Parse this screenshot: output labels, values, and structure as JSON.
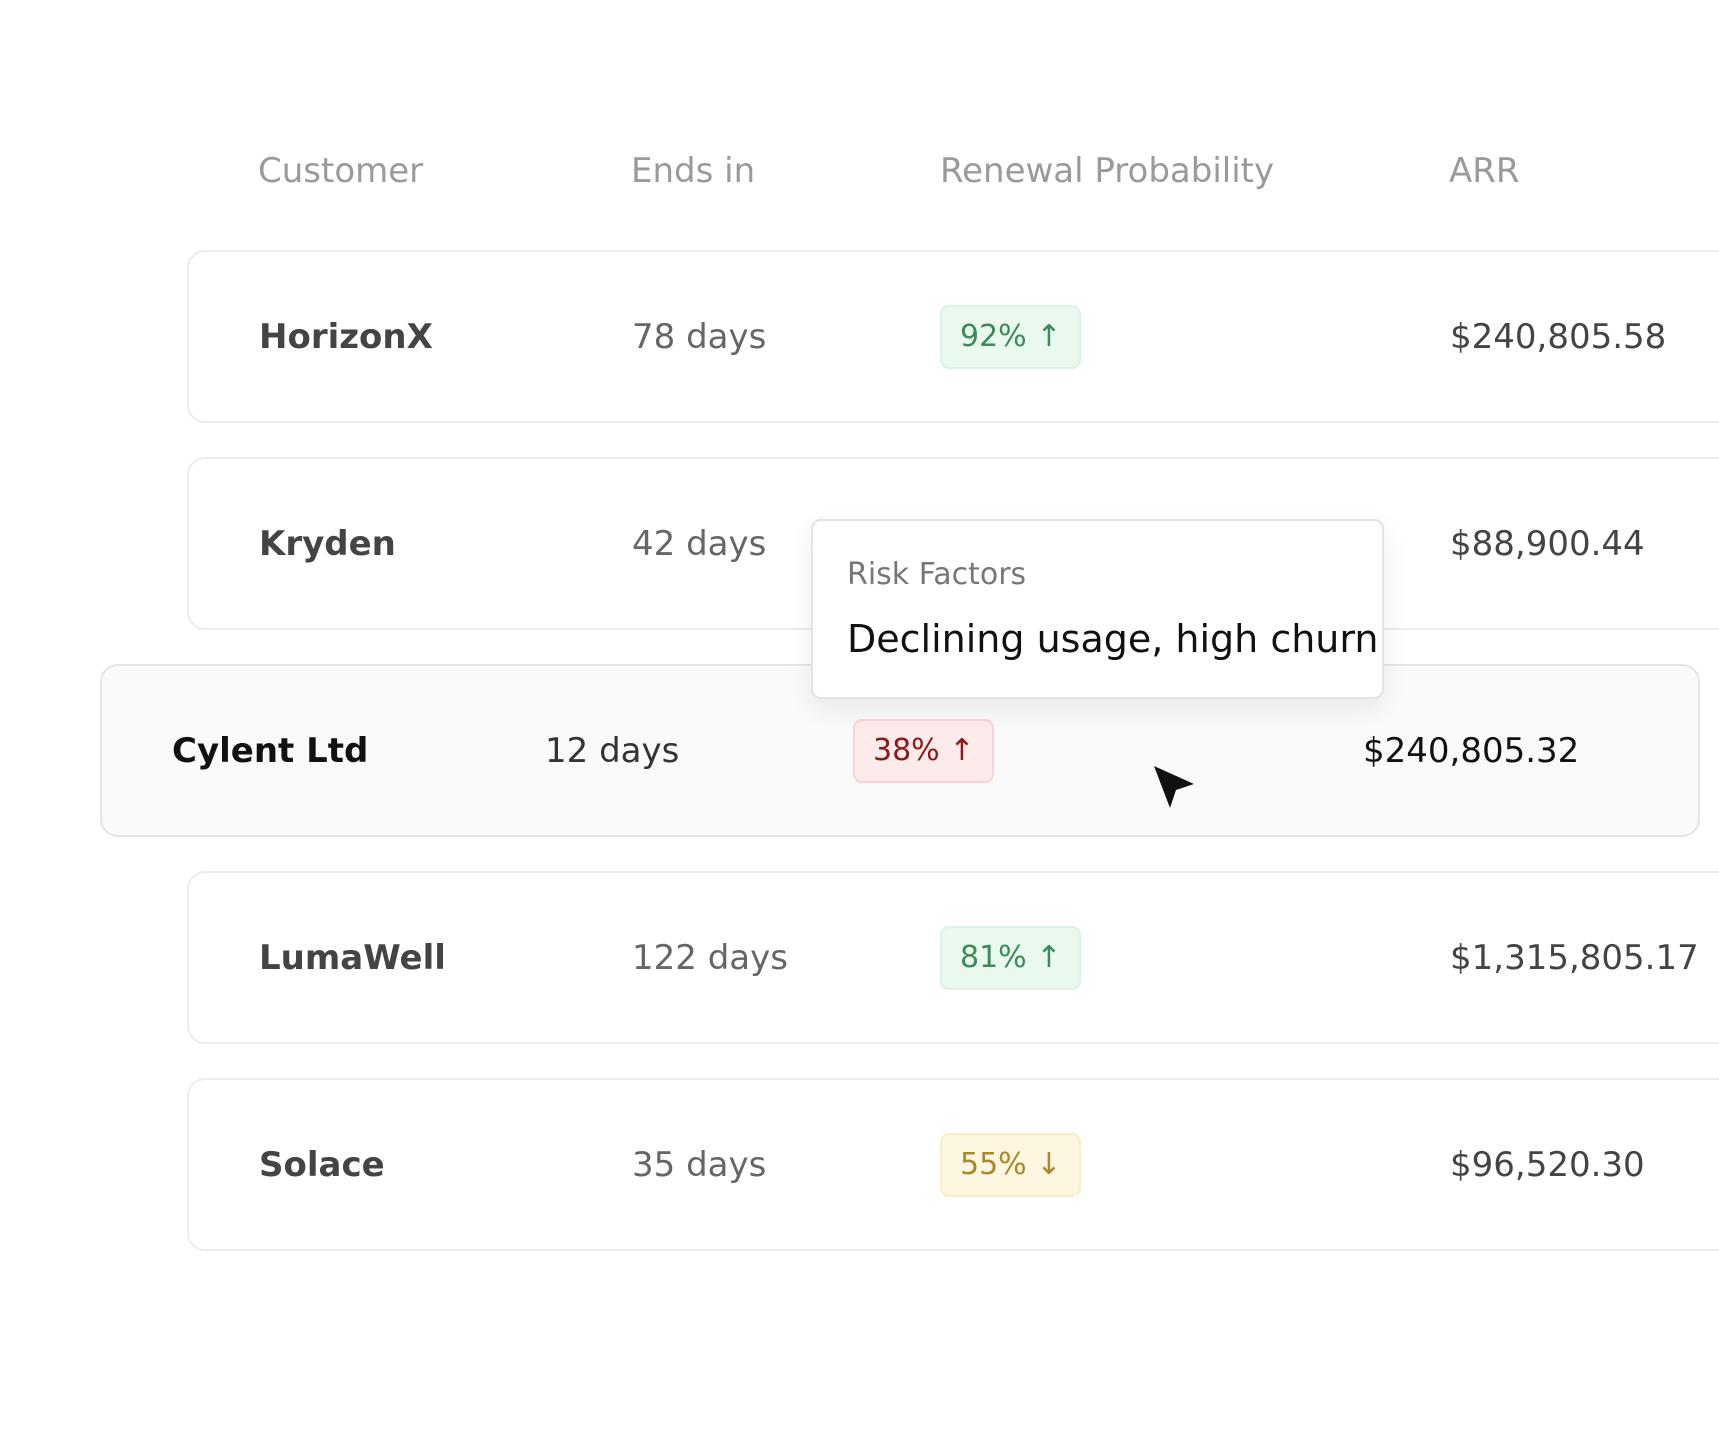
{
  "table": {
    "header": [
      "Customer",
      "Ends in",
      "Renewal Probability",
      "ARR"
    ],
    "rows": [
      {
        "customer": "HorizonX",
        "ends_in": "78 days",
        "probability": "92% ↑",
        "badge_color": "green",
        "arr": "$240,805.58"
      },
      {
        "customer": "Kryden",
        "ends_in": "42 days",
        "probability": null,
        "badge_color": null,
        "arr": "$88,900.44"
      },
      {
        "customer": "Cylent Ltd",
        "ends_in": "12 days",
        "probability": "38% ↑",
        "badge_color": "red",
        "arr": "$240,805.32",
        "highlighted": true
      },
      {
        "customer": "LumaWell",
        "ends_in": "122 days",
        "probability": "81% ↑",
        "badge_color": "green",
        "arr": "$1,315,805.17"
      },
      {
        "customer": "Solace",
        "ends_in": "35 days",
        "probability": "55% ↓",
        "badge_color": "yellow",
        "arr": "$96,520.30"
      }
    ]
  },
  "tooltip": {
    "title": "Risk Factors",
    "text": "Declining usage, high churn"
  }
}
